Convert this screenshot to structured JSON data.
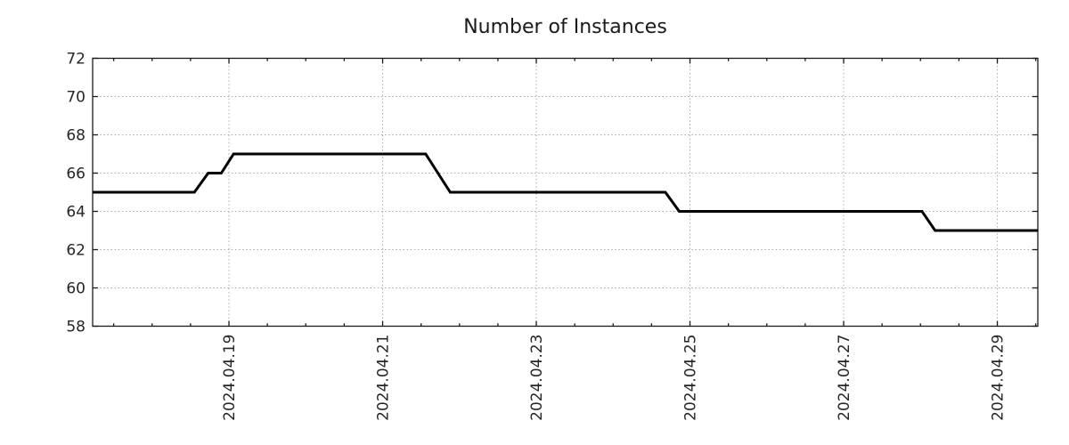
{
  "chart_data": {
    "type": "line",
    "title": "Number of Instances",
    "xlabel": "",
    "ylabel": "",
    "x_unit": "days since 2024-04-17 00:00",
    "xlim": [
      0.226,
      12.527
    ],
    "ylim": [
      58,
      72
    ],
    "yticks": [
      58,
      60,
      62,
      64,
      66,
      68,
      70,
      72
    ],
    "xticks": [
      {
        "t": 2,
        "label": "2024.04.19"
      },
      {
        "t": 4,
        "label": "2024.04.21"
      },
      {
        "t": 6,
        "label": "2024.04.23"
      },
      {
        "t": 8,
        "label": "2024.04.25"
      },
      {
        "t": 10,
        "label": "2024.04.27"
      },
      {
        "t": 12,
        "label": "2024.04.29"
      }
    ],
    "x_minor_step_days": 0.5,
    "grid": "dotted, at major ticks both axes",
    "legend": "none",
    "series": [
      {
        "name": "instances",
        "color": "#000000",
        "points": [
          [
            0.226,
            65
          ],
          [
            1.55,
            65
          ],
          [
            1.73,
            66
          ],
          [
            1.9,
            66
          ],
          [
            2.06,
            67
          ],
          [
            4.56,
            67
          ],
          [
            4.88,
            65
          ],
          [
            7.68,
            65
          ],
          [
            7.86,
            64
          ],
          [
            11.02,
            64
          ],
          [
            11.19,
            63
          ],
          [
            12.527,
            63
          ]
        ]
      }
    ],
    "colors": {
      "line": "#000000",
      "grid": "#aaaaaa",
      "axis": "#1a1a1a",
      "tick_text": "#262626",
      "title_text": "#1a1a1a",
      "background": "#ffffff"
    }
  }
}
